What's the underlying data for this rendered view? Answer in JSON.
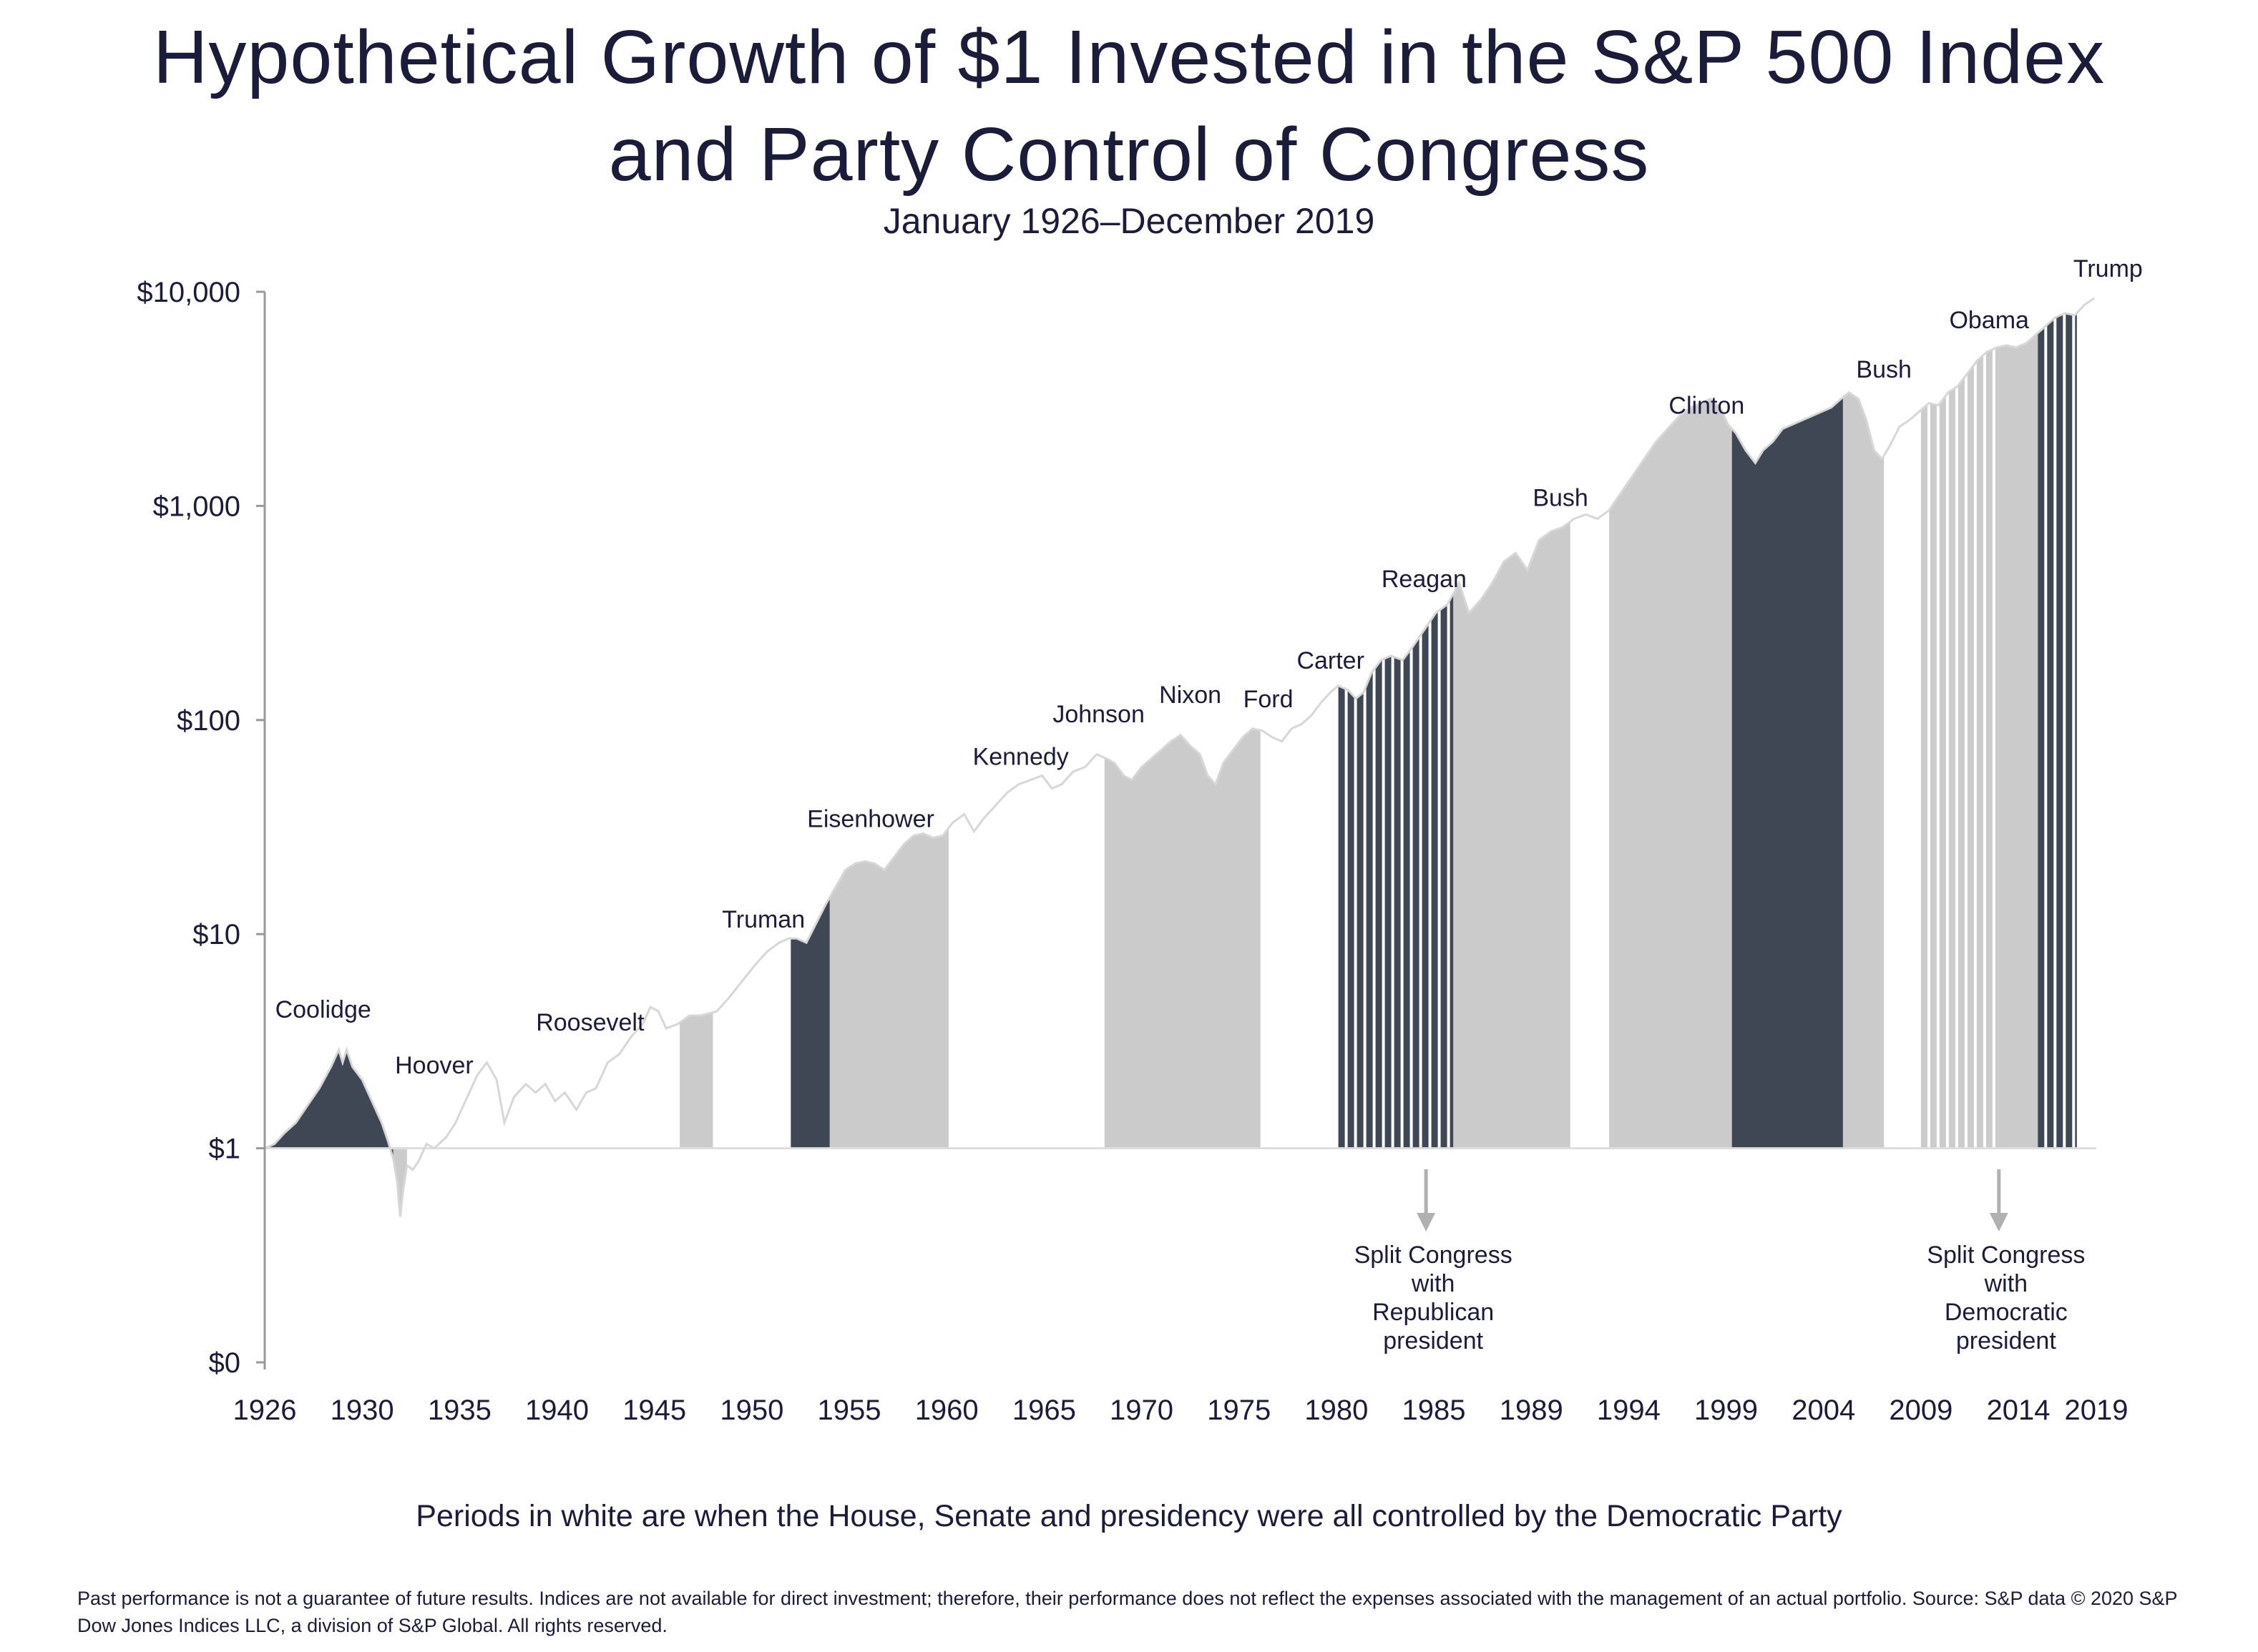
{
  "title_line1": "Hypothetical Growth of $1 Invested in the S&P 500 Index",
  "title_line2": "and Party Control of Congress",
  "subtitle": "January 1926–December 2019",
  "note": "Periods in white are when the House, Senate and presidency were all controlled by the Democratic Party",
  "footer": "Past performance is not a guarantee of future results. Indices are not available for direct investment; therefore, their performance does not reflect the expenses associated with the management of an actual portfolio. Source: S&P data © 2020 S&P Dow Jones Indices LLC, a division of S&P Global. All rights reserved.",
  "colors": {
    "dark": "#3e4753",
    "light": "#cbcbcb",
    "line": "#d7d7d7",
    "axis": "#999999",
    "arrow": "#b0b0b0",
    "text": "#1b1b3a"
  },
  "chart_data": {
    "type": "area",
    "title": "Hypothetical Growth of $1 Invested in the S&P 500 Index and Party Control of Congress",
    "y_scale": "log",
    "ylim_log10": [
      -1,
      4
    ],
    "y_ticks": [
      {
        "label": "$10,000",
        "log10": 4
      },
      {
        "label": "$1,000",
        "log10": 3
      },
      {
        "label": "$100",
        "log10": 2
      },
      {
        "label": "$10",
        "log10": 1
      },
      {
        "label": "$1",
        "log10": 0
      },
      {
        "label": "$0",
        "log10": -1
      }
    ],
    "xlim": [
      1926,
      2020
    ],
    "x_ticks": [
      {
        "label": "1926",
        "year": 1926.0
      },
      {
        "label": "1930",
        "year": 1931.0
      },
      {
        "label": "1935",
        "year": 1936.0
      },
      {
        "label": "1940",
        "year": 1941.0
      },
      {
        "label": "1945",
        "year": 1946.0
      },
      {
        "label": "1950",
        "year": 1951.0
      },
      {
        "label": "1955",
        "year": 1956.0
      },
      {
        "label": "1960",
        "year": 1961.0
      },
      {
        "label": "1965",
        "year": 1966.0
      },
      {
        "label": "1970",
        "year": 1971.0
      },
      {
        "label": "1975",
        "year": 1976.0
      },
      {
        "label": "1980",
        "year": 1981.0
      },
      {
        "label": "1985",
        "year": 1986.0
      },
      {
        "label": "1989",
        "year": 1991.0
      },
      {
        "label": "1994",
        "year": 1996.0
      },
      {
        "label": "1999",
        "year": 2001.0
      },
      {
        "label": "2004",
        "year": 2006.0
      },
      {
        "label": "2009",
        "year": 2011.0
      },
      {
        "label": "2014",
        "year": 2016.0
      },
      {
        "label": "2019",
        "year": 2020.0
      }
    ],
    "series": [
      {
        "name": "Growth of $1 (S&P 500)",
        "points": [
          [
            1926.0,
            0.0
          ],
          [
            1926.5,
            0.02
          ],
          [
            1927.0,
            0.07
          ],
          [
            1927.6,
            0.12
          ],
          [
            1928.2,
            0.2
          ],
          [
            1928.8,
            0.28
          ],
          [
            1929.4,
            0.38
          ],
          [
            1929.8,
            0.46
          ],
          [
            1930.0,
            0.4
          ],
          [
            1930.2,
            0.46
          ],
          [
            1930.5,
            0.38
          ],
          [
            1931.0,
            0.32
          ],
          [
            1931.5,
            0.22
          ],
          [
            1932.0,
            0.12
          ],
          [
            1932.3,
            0.04
          ],
          [
            1932.6,
            -0.05
          ],
          [
            1932.8,
            -0.16
          ],
          [
            1932.95,
            -0.32
          ],
          [
            1933.1,
            -0.2
          ],
          [
            1933.3,
            -0.08
          ],
          [
            1933.6,
            -0.1
          ],
          [
            1933.9,
            -0.06
          ],
          [
            1934.3,
            0.02
          ],
          [
            1934.7,
            0.0
          ],
          [
            1935.3,
            0.05
          ],
          [
            1935.8,
            0.12
          ],
          [
            1936.4,
            0.24
          ],
          [
            1936.9,
            0.34
          ],
          [
            1937.4,
            0.4
          ],
          [
            1937.9,
            0.32
          ],
          [
            1938.3,
            0.12
          ],
          [
            1938.8,
            0.24
          ],
          [
            1939.4,
            0.3
          ],
          [
            1939.9,
            0.26
          ],
          [
            1940.4,
            0.3
          ],
          [
            1940.9,
            0.22
          ],
          [
            1941.4,
            0.26
          ],
          [
            1942.0,
            0.18
          ],
          [
            1942.5,
            0.26
          ],
          [
            1943.0,
            0.28
          ],
          [
            1943.6,
            0.4
          ],
          [
            1944.2,
            0.44
          ],
          [
            1944.8,
            0.52
          ],
          [
            1945.4,
            0.58
          ],
          [
            1945.8,
            0.66
          ],
          [
            1946.2,
            0.64
          ],
          [
            1946.6,
            0.56
          ],
          [
            1947.2,
            0.58
          ],
          [
            1947.8,
            0.62
          ],
          [
            1948.4,
            0.62
          ],
          [
            1949.2,
            0.64
          ],
          [
            1949.8,
            0.7
          ],
          [
            1950.5,
            0.78
          ],
          [
            1951.2,
            0.86
          ],
          [
            1951.8,
            0.92
          ],
          [
            1952.4,
            0.96
          ],
          [
            1952.9,
            0.98
          ],
          [
            1953.3,
            0.98
          ],
          [
            1953.8,
            0.96
          ],
          [
            1954.3,
            1.05
          ],
          [
            1954.8,
            1.14
          ],
          [
            1955.3,
            1.22
          ],
          [
            1955.8,
            1.3
          ],
          [
            1956.3,
            1.33
          ],
          [
            1956.8,
            1.34
          ],
          [
            1957.3,
            1.33
          ],
          [
            1957.8,
            1.3
          ],
          [
            1958.3,
            1.36
          ],
          [
            1958.8,
            1.42
          ],
          [
            1959.3,
            1.46
          ],
          [
            1959.8,
            1.47
          ],
          [
            1960.3,
            1.45
          ],
          [
            1960.8,
            1.46
          ],
          [
            1961.3,
            1.52
          ],
          [
            1961.9,
            1.56
          ],
          [
            1962.4,
            1.48
          ],
          [
            1962.9,
            1.54
          ],
          [
            1963.5,
            1.6
          ],
          [
            1964.1,
            1.66
          ],
          [
            1964.7,
            1.7
          ],
          [
            1965.3,
            1.72
          ],
          [
            1965.9,
            1.74
          ],
          [
            1966.4,
            1.68
          ],
          [
            1966.9,
            1.7
          ],
          [
            1967.5,
            1.76
          ],
          [
            1968.1,
            1.78
          ],
          [
            1968.7,
            1.84
          ],
          [
            1969.2,
            1.82
          ],
          [
            1969.6,
            1.8
          ],
          [
            1970.1,
            1.74
          ],
          [
            1970.5,
            1.72
          ],
          [
            1971.0,
            1.78
          ],
          [
            1971.5,
            1.82
          ],
          [
            1972.0,
            1.86
          ],
          [
            1972.5,
            1.9
          ],
          [
            1973.0,
            1.93
          ],
          [
            1973.5,
            1.88
          ],
          [
            1974.0,
            1.84
          ],
          [
            1974.4,
            1.74
          ],
          [
            1974.8,
            1.7
          ],
          [
            1975.2,
            1.8
          ],
          [
            1975.7,
            1.86
          ],
          [
            1976.2,
            1.92
          ],
          [
            1976.7,
            1.96
          ],
          [
            1977.2,
            1.95
          ],
          [
            1977.7,
            1.92
          ],
          [
            1978.2,
            1.9
          ],
          [
            1978.7,
            1.96
          ],
          [
            1979.2,
            1.98
          ],
          [
            1979.7,
            2.02
          ],
          [
            1980.2,
            2.08
          ],
          [
            1980.7,
            2.13
          ],
          [
            1981.1,
            2.16
          ],
          [
            1981.6,
            2.14
          ],
          [
            1982.0,
            2.1
          ],
          [
            1982.4,
            2.13
          ],
          [
            1982.8,
            2.22
          ],
          [
            1983.3,
            2.28
          ],
          [
            1983.8,
            2.3
          ],
          [
            1984.4,
            2.28
          ],
          [
            1984.9,
            2.34
          ],
          [
            1985.5,
            2.42
          ],
          [
            1986.1,
            2.5
          ],
          [
            1986.7,
            2.54
          ],
          [
            1987.3,
            2.64
          ],
          [
            1987.8,
            2.5
          ],
          [
            1988.4,
            2.56
          ],
          [
            1989.0,
            2.64
          ],
          [
            1989.6,
            2.74
          ],
          [
            1990.2,
            2.78
          ],
          [
            1990.8,
            2.7
          ],
          [
            1991.4,
            2.84
          ],
          [
            1992.0,
            2.88
          ],
          [
            1992.6,
            2.9
          ],
          [
            1993.2,
            2.94
          ],
          [
            1993.8,
            2.96
          ],
          [
            1994.4,
            2.94
          ],
          [
            1995.0,
            2.98
          ],
          [
            1995.6,
            3.06
          ],
          [
            1996.2,
            3.14
          ],
          [
            1996.8,
            3.22
          ],
          [
            1997.4,
            3.3
          ],
          [
            1998.0,
            3.36
          ],
          [
            1998.6,
            3.42
          ],
          [
            1999.2,
            3.46
          ],
          [
            1999.7,
            3.48
          ],
          [
            2000.2,
            3.5
          ],
          [
            2000.7,
            3.46
          ],
          [
            2001.1,
            3.38
          ],
          [
            2001.5,
            3.34
          ],
          [
            2002.0,
            3.26
          ],
          [
            2002.5,
            3.2
          ],
          [
            2002.9,
            3.26
          ],
          [
            2003.4,
            3.3
          ],
          [
            2003.9,
            3.36
          ],
          [
            2004.4,
            3.38
          ],
          [
            2004.9,
            3.4
          ],
          [
            2005.4,
            3.42
          ],
          [
            2005.9,
            3.44
          ],
          [
            2006.4,
            3.46
          ],
          [
            2006.9,
            3.5
          ],
          [
            2007.3,
            3.53
          ],
          [
            2007.8,
            3.5
          ],
          [
            2008.2,
            3.4
          ],
          [
            2008.6,
            3.26
          ],
          [
            2009.0,
            3.22
          ],
          [
            2009.4,
            3.28
          ],
          [
            2009.9,
            3.37
          ],
          [
            2010.4,
            3.4
          ],
          [
            2010.9,
            3.44
          ],
          [
            2011.4,
            3.48
          ],
          [
            2011.9,
            3.47
          ],
          [
            2012.4,
            3.53
          ],
          [
            2012.9,
            3.56
          ],
          [
            2013.4,
            3.62
          ],
          [
            2013.9,
            3.68
          ],
          [
            2014.4,
            3.72
          ],
          [
            2014.9,
            3.74
          ],
          [
            2015.4,
            3.75
          ],
          [
            2015.9,
            3.74
          ],
          [
            2016.4,
            3.76
          ],
          [
            2016.9,
            3.8
          ],
          [
            2017.4,
            3.84
          ],
          [
            2017.9,
            3.88
          ],
          [
            2018.4,
            3.9
          ],
          [
            2018.9,
            3.89
          ],
          [
            2019.4,
            3.94
          ],
          [
            2019.9,
            3.97
          ]
        ]
      }
    ],
    "periods": [
      {
        "start": 1926.0,
        "end": 1932.6,
        "shade": "dark"
      },
      {
        "start": 1932.6,
        "end": 1933.3,
        "shade": "light"
      },
      {
        "start": 1947.3,
        "end": 1949.0,
        "shade": "light"
      },
      {
        "start": 1953.0,
        "end": 1955.0,
        "shade": "dark"
      },
      {
        "start": 1955.0,
        "end": 1961.1,
        "shade": "light"
      },
      {
        "start": 1969.1,
        "end": 1977.1,
        "shade": "light"
      },
      {
        "start": 1981.1,
        "end": 1987.0,
        "shade": "dark_split"
      },
      {
        "start": 1987.0,
        "end": 1993.0,
        "shade": "light"
      },
      {
        "start": 1995.0,
        "end": 2001.3,
        "shade": "light"
      },
      {
        "start": 2001.3,
        "end": 2007.0,
        "shade": "dark"
      },
      {
        "start": 2007.0,
        "end": 2009.1,
        "shade": "light"
      },
      {
        "start": 2011.0,
        "end": 2015.0,
        "shade": "light_split"
      },
      {
        "start": 2015.0,
        "end": 2017.0,
        "shade": "light"
      },
      {
        "start": 2017.0,
        "end": 2019.0,
        "shade": "dark_split"
      }
    ],
    "presidents": [
      {
        "name": "Coolidge",
        "year": 1929.0,
        "log10": 0.61
      },
      {
        "name": "Hoover",
        "year": 1934.7,
        "log10": 0.35
      },
      {
        "name": "Roosevelt",
        "year": 1942.7,
        "log10": 0.55
      },
      {
        "name": "Truman",
        "year": 1951.6,
        "log10": 1.03
      },
      {
        "name": "Eisenhower",
        "year": 1957.1,
        "log10": 1.5
      },
      {
        "name": "Kennedy",
        "year": 1964.8,
        "log10": 1.79
      },
      {
        "name": "Johnson",
        "year": 1968.8,
        "log10": 1.99
      },
      {
        "name": "Nixon",
        "year": 1973.5,
        "log10": 2.08
      },
      {
        "name": "Ford",
        "year": 1977.5,
        "log10": 2.06
      },
      {
        "name": "Carter",
        "year": 1980.7,
        "log10": 2.24
      },
      {
        "name": "Reagan",
        "year": 1985.5,
        "log10": 2.62
      },
      {
        "name": "Bush",
        "year": 1992.5,
        "log10": 3.0
      },
      {
        "name": "Clinton",
        "year": 2000.0,
        "log10": 3.43
      },
      {
        "name": "Bush",
        "year": 2009.1,
        "log10": 3.6
      },
      {
        "name": "Obama",
        "year": 2014.5,
        "log10": 3.83
      },
      {
        "name": "Trump",
        "year": 2020.6,
        "log10": 4.07
      }
    ],
    "annotations": [
      {
        "lines": [
          "Split Congress",
          "with",
          "Republican",
          "president"
        ],
        "year": 1985.6
      },
      {
        "lines": [
          "Split Congress",
          "with",
          "Democratic",
          "president"
        ],
        "year": 2015.0
      }
    ]
  }
}
